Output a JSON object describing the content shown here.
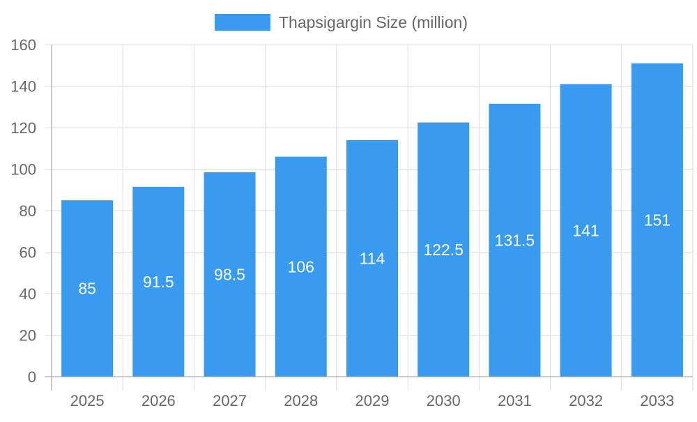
{
  "chart_data": {
    "type": "bar",
    "title": "",
    "xlabel": "",
    "ylabel": "",
    "categories": [
      "2025",
      "2026",
      "2027",
      "2028",
      "2029",
      "2030",
      "2031",
      "2032",
      "2033"
    ],
    "series": [
      {
        "name": "Thapsigargin Size (million)",
        "values": [
          85,
          91.5,
          98.5,
          106,
          114,
          122.5,
          131.5,
          141,
          151
        ],
        "color": "#389BEF"
      }
    ],
    "ylim": [
      0,
      160
    ],
    "yticks": [
      0,
      20,
      40,
      60,
      80,
      100,
      120,
      140,
      160
    ],
    "grid": true,
    "legend": "top",
    "data_labels": true
  }
}
